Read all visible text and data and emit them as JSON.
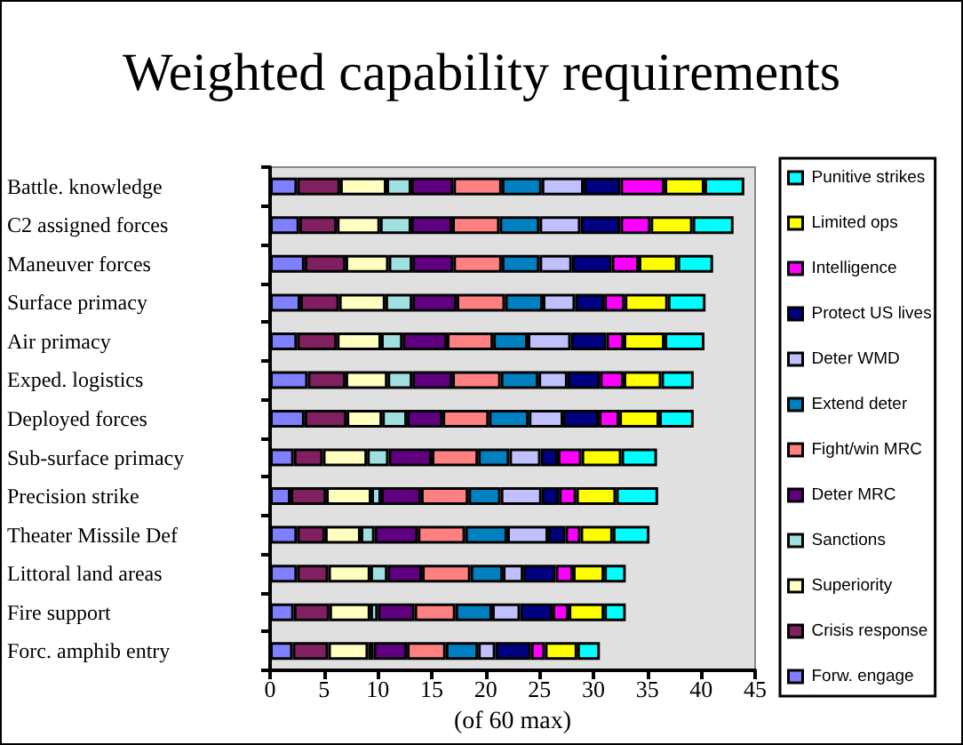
{
  "chart_data": {
    "type": "bar",
    "orientation": "horizontal",
    "stacked": true,
    "title": "Weighted capability requirements",
    "xlabel": "(of 60 max)",
    "categories": [
      "Battle. knowledge",
      "C2 assigned forces",
      "Maneuver forces",
      "Surface primacy",
      "Air primacy",
      "Exped. logistics",
      "Deployed forces",
      "Sub-surface primacy",
      "Precision strike",
      "Theater Missile Def",
      "Littoral land areas",
      "Fire support",
      "Forc. amphib entry"
    ],
    "xlim": [
      0,
      45
    ],
    "xticks": [
      0,
      5,
      10,
      15,
      20,
      25,
      30,
      35,
      40,
      45
    ],
    "grid": false,
    "legend": "right",
    "series": [
      {
        "name": "Forw. engage",
        "color": "#8080ff",
        "values": [
          2.5,
          2.7,
          3.2,
          2.8,
          2.5,
          3.5,
          3.2,
          2.2,
          1.9,
          2.5,
          2.5,
          2.2,
          2.1
        ]
      },
      {
        "name": "Crisis response",
        "color": "#802060",
        "values": [
          4.0,
          3.5,
          3.8,
          3.6,
          3.7,
          3.5,
          3.9,
          2.7,
          3.3,
          2.6,
          2.9,
          3.3,
          3.3
        ]
      },
      {
        "name": "Superiority",
        "color": "#ffffc0",
        "values": [
          4.3,
          4.0,
          4.0,
          4.3,
          4.1,
          3.9,
          3.3,
          4.1,
          4.2,
          3.3,
          3.9,
          3.8,
          3.7
        ]
      },
      {
        "name": "Sanctions",
        "color": "#a0e0e0",
        "values": [
          2.3,
          2.9,
          2.2,
          2.5,
          2.0,
          2.3,
          2.3,
          2.0,
          0.9,
          1.3,
          1.6,
          0.7,
          0.5
        ]
      },
      {
        "name": "Deter MRC",
        "color": "#600080",
        "values": [
          3.9,
          3.8,
          3.8,
          4.1,
          4.1,
          3.7,
          3.3,
          4.0,
          3.7,
          4.0,
          3.2,
          3.4,
          3.1
        ]
      },
      {
        "name": "Fight/win MRC",
        "color": "#ff8080",
        "values": [
          4.5,
          4.4,
          4.5,
          4.5,
          4.3,
          4.5,
          4.3,
          4.3,
          4.4,
          4.4,
          4.5,
          3.8,
          3.6
        ]
      },
      {
        "name": "Extend deter",
        "color": "#0080c0",
        "values": [
          3.7,
          3.7,
          3.5,
          3.5,
          3.2,
          3.5,
          3.7,
          2.9,
          3.0,
          3.9,
          3.0,
          3.4,
          3.0
        ]
      },
      {
        "name": "Deter WMD",
        "color": "#c0c0ff",
        "values": [
          3.9,
          3.8,
          3.0,
          3.0,
          4.0,
          2.7,
          3.2,
          2.9,
          3.8,
          3.8,
          1.9,
          2.6,
          1.6
        ]
      },
      {
        "name": "Protect US lives",
        "color": "#000080",
        "values": [
          3.4,
          3.7,
          3.7,
          2.7,
          3.3,
          3.0,
          3.3,
          1.6,
          1.6,
          1.6,
          3.0,
          3.0,
          3.3
        ]
      },
      {
        "name": "Intelligence",
        "color": "#ff00ff",
        "values": [
          4.1,
          2.8,
          2.5,
          1.9,
          1.6,
          2.2,
          1.9,
          2.2,
          1.6,
          1.4,
          1.6,
          1.5,
          1.3
        ]
      },
      {
        "name": "Limited ops",
        "color": "#ffff00",
        "values": [
          3.7,
          3.9,
          3.6,
          4.0,
          3.8,
          3.5,
          3.7,
          3.7,
          3.7,
          3.0,
          2.9,
          3.3,
          3.0
        ]
      },
      {
        "name": "Punitive strikes",
        "color": "#00ffff",
        "values": [
          3.7,
          3.8,
          3.3,
          3.5,
          3.7,
          3.0,
          3.2,
          3.3,
          3.9,
          3.4,
          2.0,
          2.0,
          2.1
        ]
      }
    ]
  }
}
